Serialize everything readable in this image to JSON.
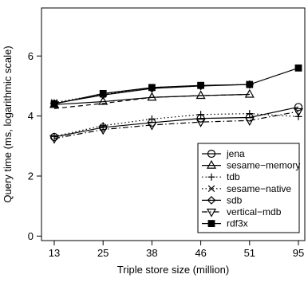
{
  "chart_data": {
    "type": "line",
    "title": "",
    "xlabel": "Triple store size (million)",
    "ylabel": "Query time (ms, logarithmic scale)",
    "x_categories": [
      "13",
      "25",
      "38",
      "46",
      "51",
      "95"
    ],
    "y_ticks": [
      "0",
      "2",
      "4",
      "6"
    ],
    "ylim": [
      -0.15,
      7.6
    ],
    "grid": false,
    "legend_position": "bottom-right",
    "series": [
      {
        "name": "jena",
        "marker": "circle",
        "dash": "solid",
        "values": [
          3.3,
          3.62,
          3.78,
          3.92,
          3.95,
          4.3
        ]
      },
      {
        "name": "sesame−memory",
        "marker": "triangle-up",
        "dash": "solid",
        "values": [
          4.38,
          4.48,
          4.62,
          4.68,
          4.72,
          null
        ]
      },
      {
        "name": "tdb",
        "marker": "plus",
        "dash": "dotted",
        "values": [
          3.32,
          3.68,
          3.9,
          4.05,
          4.08,
          3.98
        ]
      },
      {
        "name": "sesame−native",
        "marker": "x",
        "dash": "dotted",
        "values": [
          4.45,
          4.72,
          4.95,
          5.02,
          5.05,
          null
        ]
      },
      {
        "name": "sdb",
        "marker": "diamond",
        "dash": "solid",
        "values": [
          4.42,
          4.7,
          4.92,
          5.0,
          5.05,
          null
        ]
      },
      {
        "name": "vertical−mdb",
        "marker": "triangle-down",
        "dash": "dashdot",
        "values": [
          3.25,
          3.55,
          3.7,
          3.8,
          3.85,
          4.15
        ]
      },
      {
        "name": "rdf3x",
        "marker": "square-filled",
        "dash": "solid",
        "values": [
          4.4,
          4.75,
          4.95,
          5.02,
          5.05,
          5.6
        ]
      }
    ],
    "extra_lines": [
      {
        "marker": "none",
        "dash": "dashed",
        "values": [
          4.25,
          4.42,
          4.62,
          4.68,
          4.72,
          null
        ]
      }
    ]
  }
}
